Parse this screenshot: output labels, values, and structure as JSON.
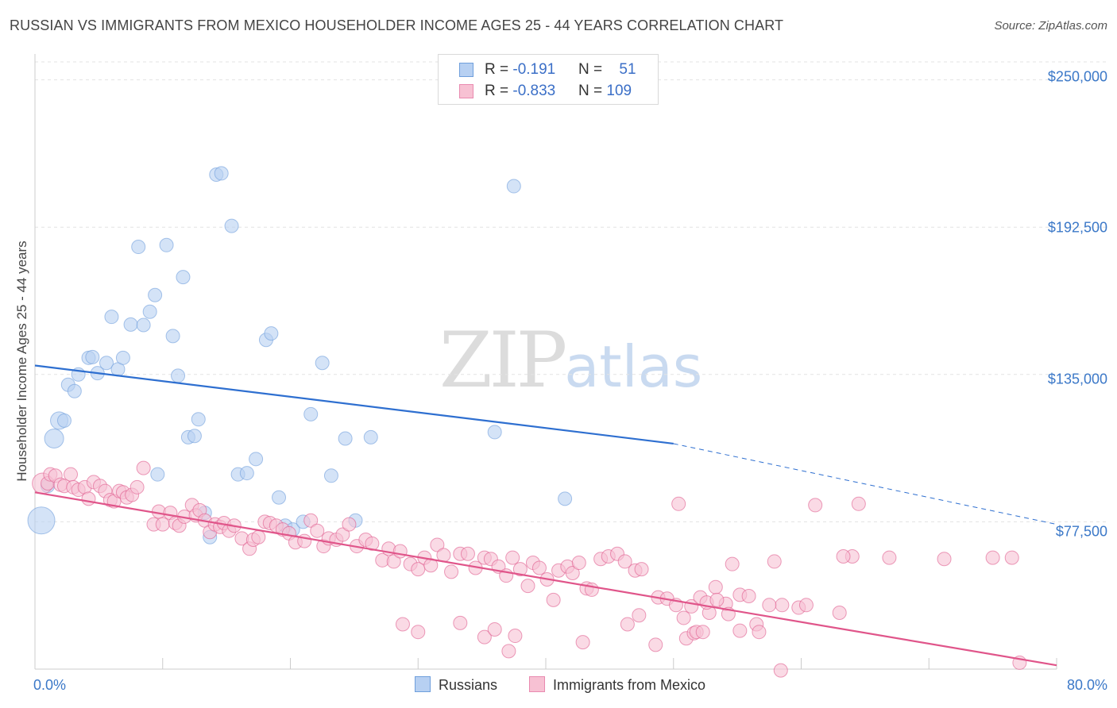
{
  "title": "RUSSIAN VS IMMIGRANTS FROM MEXICO HOUSEHOLDER INCOME AGES 25 - 44 YEARS CORRELATION CHART",
  "source": "Source: ZipAtlas.com",
  "watermark": {
    "zip": "ZIP",
    "atlas": "atlas"
  },
  "legend": {
    "rows": [
      {
        "r_label": "R = ",
        "r_value": "-0.191",
        "n_label": "N = ",
        "n_value": "51",
        "fill": "#b7d0f2",
        "stroke": "#6f9fdc"
      },
      {
        "r_label": "R = ",
        "r_value": "-0.833",
        "n_label": "N = ",
        "n_value": "109",
        "fill": "#f7c1d3",
        "stroke": "#e98ab0"
      }
    ]
  },
  "bottom_legend": [
    "Russians",
    "Immigrants from Mexico"
  ],
  "chart_data": {
    "type": "scatter",
    "title": "RUSSIAN VS IMMIGRANTS FROM MEXICO HOUSEHOLDER INCOME AGES 25 - 44 YEARS CORRELATION CHART",
    "xlabel": "",
    "ylabel": "Householder Income Ages 25 - 44 years",
    "xlim": [
      0,
      80
    ],
    "ylim": [
      20000,
      257000
    ],
    "x_tick_labels": [
      "0.0%",
      "80.0%"
    ],
    "y_ticks": [
      77500,
      135000,
      192500,
      250000
    ],
    "y_tick_labels": [
      "$77,500",
      "$135,000",
      "$192,500",
      "$250,000"
    ],
    "grid": true,
    "legend_position": "top-center",
    "series": [
      {
        "name": "Russians",
        "color": "#6f9fdc",
        "fill": "#b7d0f2",
        "trend": {
          "x0": 0,
          "y0": 138500,
          "x1": 50,
          "y1": 108000,
          "x_dash_end": 80,
          "y_dash_end": 76500
        },
        "points": [
          [
            0.5,
            78000
          ],
          [
            1.0,
            91500
          ],
          [
            1.5,
            110000
          ],
          [
            1.9,
            117000
          ],
          [
            2.3,
            117000
          ],
          [
            2.6,
            131000
          ],
          [
            3.1,
            128500
          ],
          [
            3.4,
            135000
          ],
          [
            4.2,
            141500
          ],
          [
            4.5,
            141800
          ],
          [
            4.9,
            135500
          ],
          [
            5.6,
            139500
          ],
          [
            6.0,
            157500
          ],
          [
            6.5,
            137000
          ],
          [
            6.9,
            141500
          ],
          [
            7.5,
            154500
          ],
          [
            8.1,
            184800
          ],
          [
            8.5,
            154300
          ],
          [
            9.0,
            159500
          ],
          [
            9.4,
            166000
          ],
          [
            9.6,
            96000
          ],
          [
            10.3,
            185500
          ],
          [
            10.8,
            150000
          ],
          [
            11.2,
            134500
          ],
          [
            11.6,
            173000
          ],
          [
            12.0,
            110500
          ],
          [
            12.5,
            111000
          ],
          [
            12.8,
            117500
          ],
          [
            13.3,
            81000
          ],
          [
            13.7,
            71500
          ],
          [
            14.2,
            213000
          ],
          [
            14.6,
            213500
          ],
          [
            15.4,
            193000
          ],
          [
            15.9,
            96000
          ],
          [
            16.6,
            96500
          ],
          [
            17.3,
            102000
          ],
          [
            18.1,
            148500
          ],
          [
            18.5,
            151000
          ],
          [
            19.1,
            87000
          ],
          [
            19.6,
            76000
          ],
          [
            20.2,
            74500
          ],
          [
            21.0,
            77500
          ],
          [
            21.6,
            119500
          ],
          [
            22.5,
            139500
          ],
          [
            23.2,
            95500
          ],
          [
            24.3,
            110000
          ],
          [
            25.1,
            78000
          ],
          [
            26.3,
            110500
          ],
          [
            36.0,
            112500
          ],
          [
            37.5,
            208500
          ],
          [
            41.5,
            86500
          ]
        ],
        "sizes": {
          "0": 34,
          "2": 24,
          "3": 22
        }
      },
      {
        "name": "Immigrants from Mexico",
        "color": "#e05b8e",
        "fill": "#f7c1d3",
        "trend": {
          "x0": 0,
          "y0": 89000,
          "x1": 80,
          "y1": 21500
        },
        "points": [
          [
            0.6,
            92500
          ],
          [
            1.0,
            92500
          ],
          [
            1.2,
            96000
          ],
          [
            1.6,
            95500
          ],
          [
            2.0,
            92000
          ],
          [
            2.3,
            91500
          ],
          [
            2.8,
            96000
          ],
          [
            3.0,
            91000
          ],
          [
            3.4,
            90000
          ],
          [
            3.9,
            91000
          ],
          [
            4.2,
            86500
          ],
          [
            4.6,
            93000
          ],
          [
            5.1,
            91500
          ],
          [
            5.5,
            89500
          ],
          [
            5.9,
            86000
          ],
          [
            6.2,
            85500
          ],
          [
            6.6,
            89500
          ],
          [
            6.9,
            89000
          ],
          [
            7.2,
            87000
          ],
          [
            7.6,
            88000
          ],
          [
            8.0,
            91000
          ],
          [
            8.5,
            98500
          ],
          [
            9.3,
            76500
          ],
          [
            9.7,
            81500
          ],
          [
            10.0,
            76500
          ],
          [
            10.6,
            81000
          ],
          [
            11.0,
            77000
          ],
          [
            11.3,
            76000
          ],
          [
            11.7,
            79500
          ],
          [
            12.3,
            84000
          ],
          [
            12.6,
            80000
          ],
          [
            12.9,
            82000
          ],
          [
            13.3,
            78000
          ],
          [
            13.7,
            73500
          ],
          [
            14.1,
            76500
          ],
          [
            14.5,
            75500
          ],
          [
            14.8,
            77000
          ],
          [
            15.2,
            74000
          ],
          [
            15.6,
            76000
          ],
          [
            16.2,
            71000
          ],
          [
            16.8,
            67000
          ],
          [
            17.1,
            70500
          ],
          [
            17.5,
            71500
          ],
          [
            18.0,
            77500
          ],
          [
            18.4,
            77000
          ],
          [
            18.9,
            76000
          ],
          [
            19.4,
            74500
          ],
          [
            19.9,
            73000
          ],
          [
            20.4,
            69500
          ],
          [
            21.1,
            70000
          ],
          [
            21.6,
            78000
          ],
          [
            22.1,
            74000
          ],
          [
            22.6,
            68000
          ],
          [
            23.0,
            71000
          ],
          [
            23.6,
            70500
          ],
          [
            24.1,
            72500
          ],
          [
            24.6,
            76500
          ],
          [
            25.2,
            68000
          ],
          [
            25.9,
            70500
          ],
          [
            26.4,
            69000
          ],
          [
            27.2,
            62500
          ],
          [
            27.7,
            67000
          ],
          [
            28.1,
            62000
          ],
          [
            28.6,
            66000
          ],
          [
            29.4,
            61000
          ],
          [
            30.0,
            59000
          ],
          [
            30.5,
            63500
          ],
          [
            31.0,
            60500
          ],
          [
            31.5,
            68500
          ],
          [
            32.0,
            64500
          ],
          [
            32.6,
            58000
          ],
          [
            33.3,
            65000
          ],
          [
            33.9,
            65000
          ],
          [
            34.5,
            59500
          ],
          [
            35.2,
            63500
          ],
          [
            35.7,
            63000
          ],
          [
            36.3,
            60000
          ],
          [
            36.9,
            56500
          ],
          [
            37.4,
            63500
          ],
          [
            38.0,
            59000
          ],
          [
            38.6,
            52500
          ],
          [
            39.0,
            61500
          ],
          [
            39.5,
            59500
          ],
          [
            40.1,
            55000
          ],
          [
            40.6,
            47000
          ],
          [
            41.0,
            58500
          ],
          [
            41.7,
            60000
          ],
          [
            42.1,
            57500
          ],
          [
            42.6,
            61500
          ],
          [
            43.2,
            51500
          ],
          [
            43.6,
            51000
          ],
          [
            44.3,
            63000
          ],
          [
            44.9,
            64000
          ],
          [
            45.6,
            65000
          ],
          [
            46.2,
            62000
          ],
          [
            47.0,
            58500
          ],
          [
            47.5,
            59000
          ],
          [
            48.8,
            48000
          ],
          [
            49.5,
            47500
          ],
          [
            50.2,
            45000
          ],
          [
            50.8,
            40000
          ],
          [
            51.4,
            44500
          ],
          [
            52.1,
            48000
          ],
          [
            52.8,
            42000
          ],
          [
            53.3,
            52000
          ],
          [
            54.1,
            45500
          ],
          [
            54.6,
            61000
          ],
          [
            55.2,
            49000
          ],
          [
            55.9,
            48500
          ],
          [
            56.5,
            37500
          ]
        ],
        "extra_points": [
          [
            28.8,
            37500
          ],
          [
            30.0,
            34500
          ],
          [
            33.3,
            38000
          ],
          [
            35.2,
            32500
          ],
          [
            36.0,
            35500
          ],
          [
            37.1,
            27000
          ],
          [
            37.6,
            33000
          ],
          [
            42.9,
            30500
          ],
          [
            46.4,
            37500
          ],
          [
            47.3,
            41000
          ],
          [
            48.6,
            29500
          ],
          [
            50.4,
            84500
          ],
          [
            51.0,
            32000
          ],
          [
            51.6,
            34000
          ],
          [
            51.8,
            34500
          ],
          [
            52.3,
            34500
          ],
          [
            52.6,
            46000
          ],
          [
            53.4,
            47000
          ],
          [
            54.3,
            41500
          ],
          [
            55.2,
            35000
          ],
          [
            56.7,
            34500
          ],
          [
            57.9,
            62000
          ],
          [
            58.5,
            45000
          ],
          [
            59.8,
            44000
          ],
          [
            60.4,
            45000
          ],
          [
            61.1,
            84000
          ],
          [
            63.0,
            42000
          ],
          [
            64.0,
            64000
          ],
          [
            66.9,
            63500
          ],
          [
            71.2,
            63000
          ],
          [
            75.0,
            63500
          ],
          [
            76.5,
            63500
          ],
          [
            77.1,
            22500
          ],
          [
            58.4,
            19500
          ],
          [
            63.3,
            64000
          ],
          [
            64.5,
            84500
          ],
          [
            57.5,
            45000
          ]
        ],
        "sizes": {
          "0": 26
        }
      }
    ]
  }
}
